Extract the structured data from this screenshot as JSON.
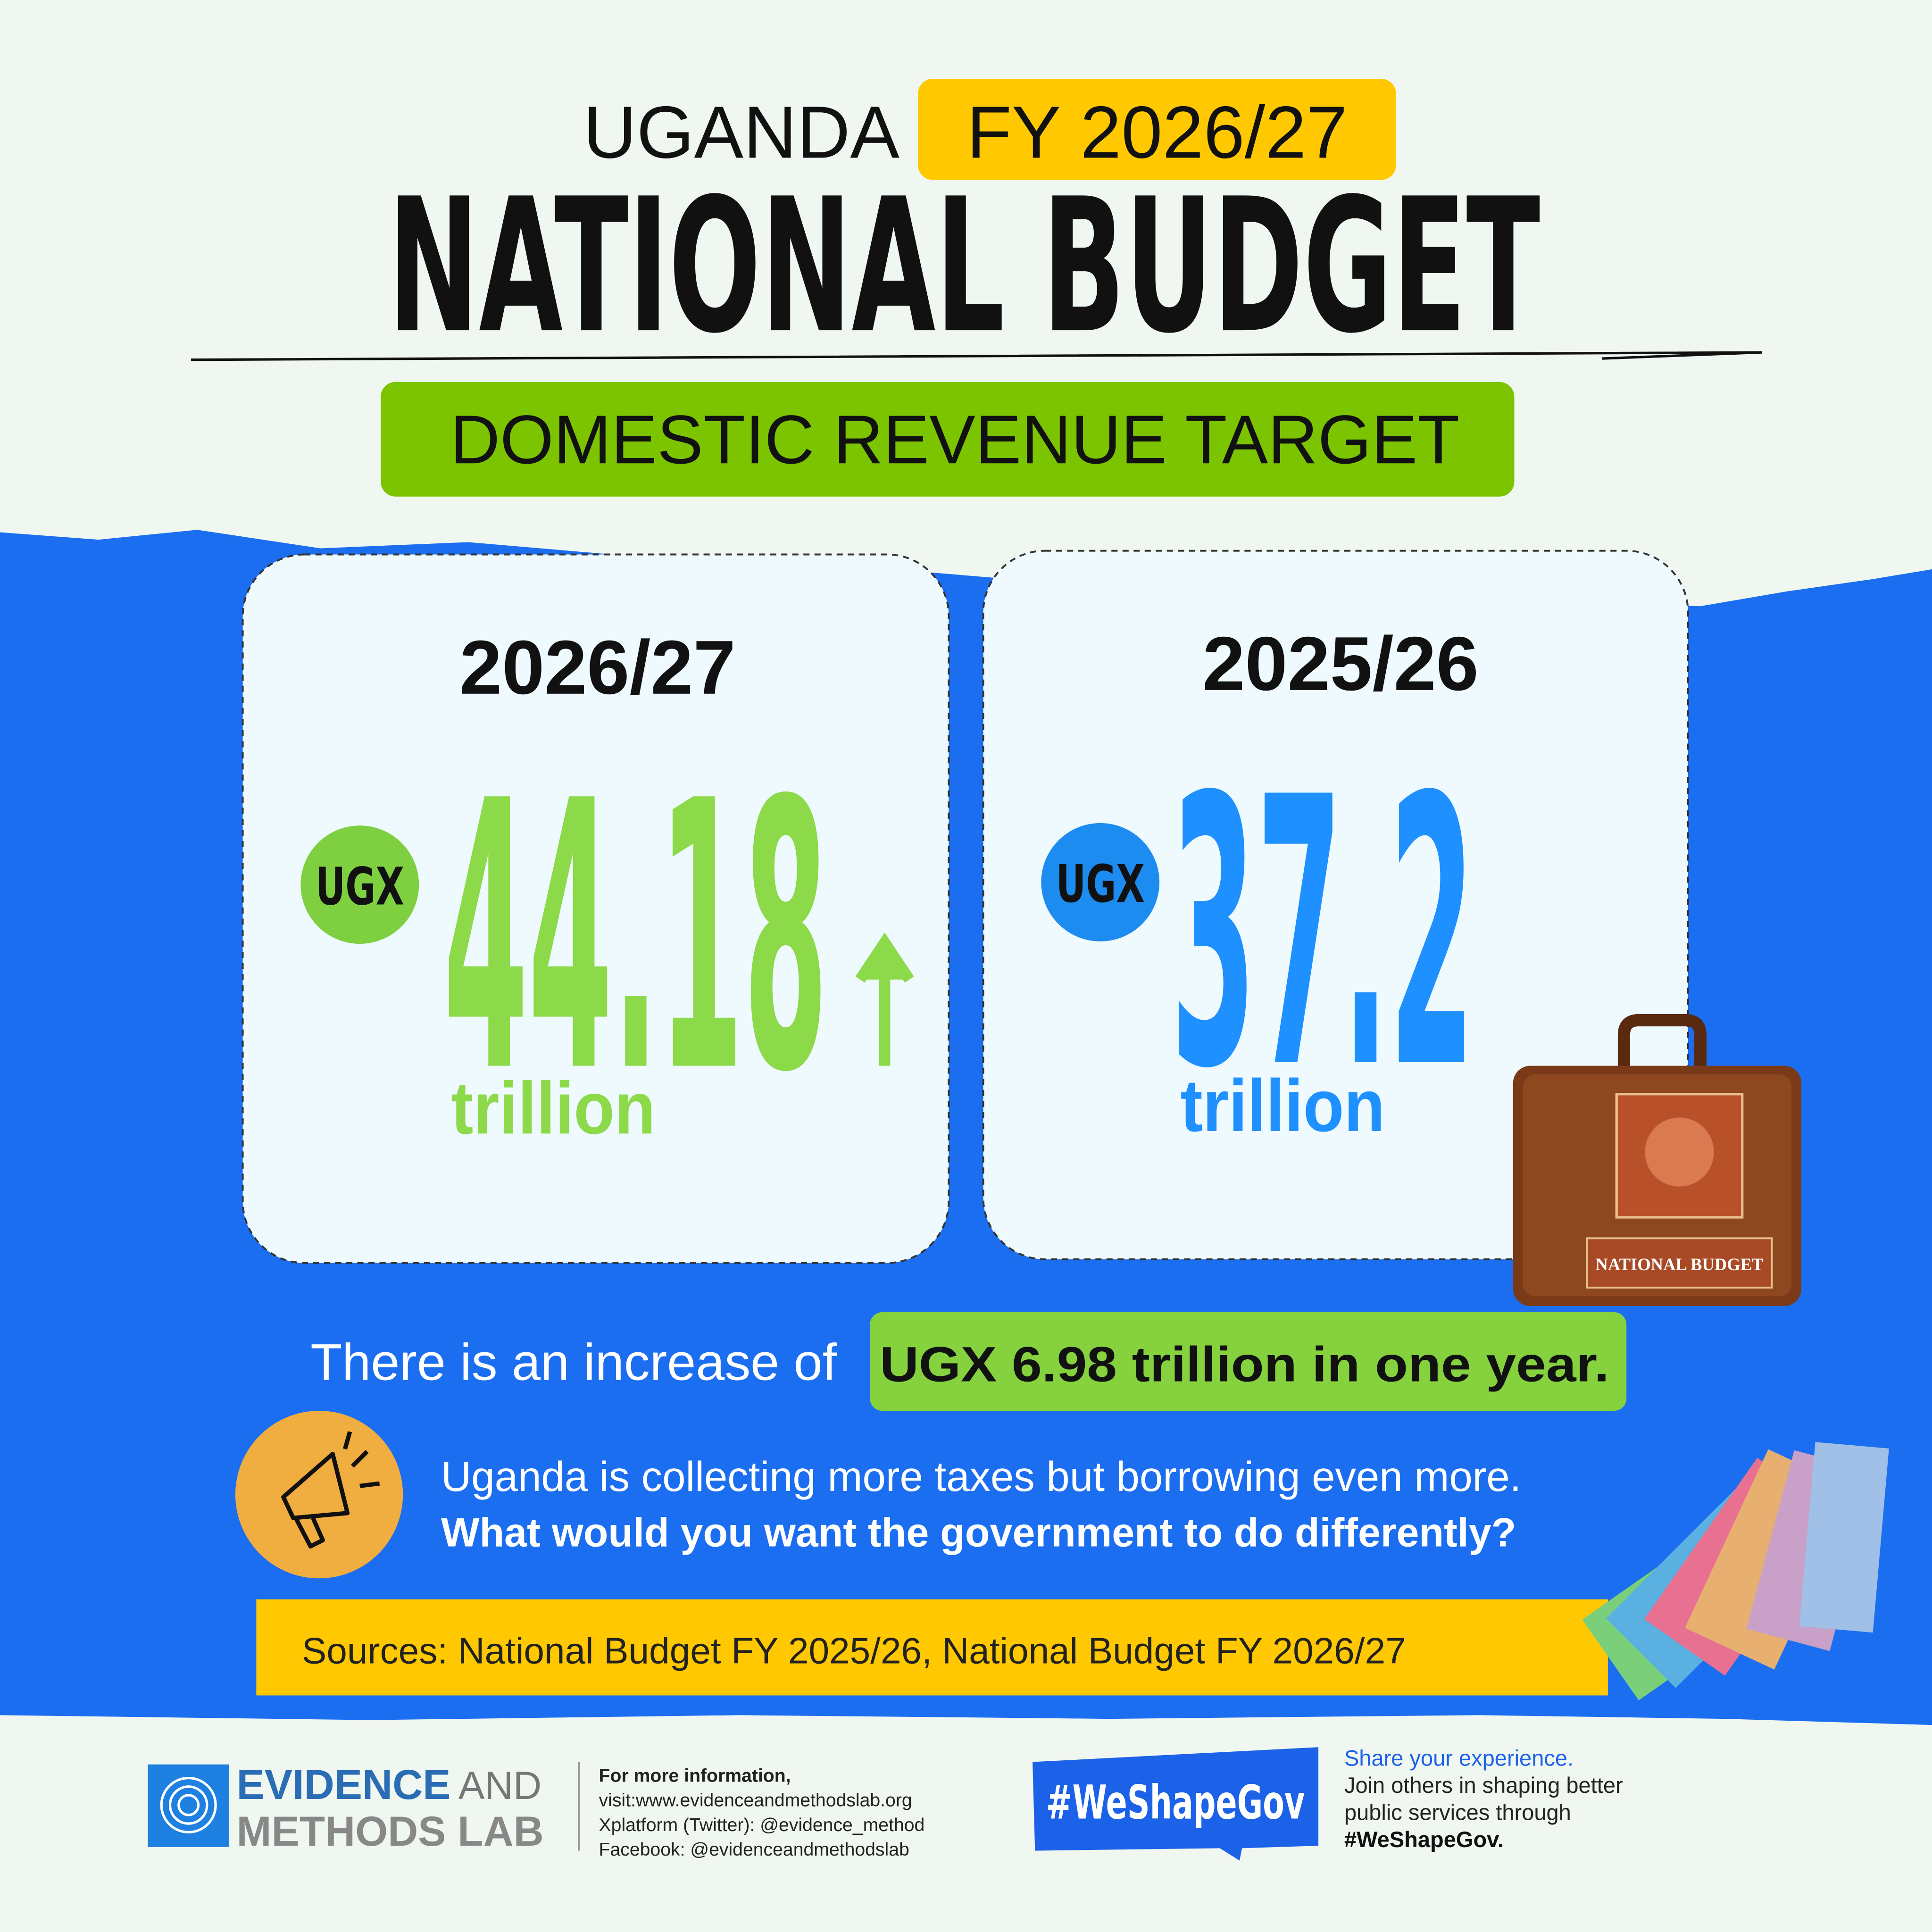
{
  "header": {
    "title_prefix": "UGANDA",
    "title_highlight": "FY 2026/27",
    "title": "NATIONAL BUDGET",
    "subtitle": "DOMESTIC REVENUE TARGET"
  },
  "cards": [
    {
      "year": "2026/27",
      "currency": "UGX",
      "amount": 44.18,
      "unit": "trillion"
    },
    {
      "year": "2025/26",
      "currency": "UGX",
      "amount": 37.2,
      "unit": "trillion"
    }
  ],
  "briefcase_label": "NATIONAL BUDGET",
  "increase": {
    "text": "There is an increase of",
    "highlight": "UGX 6.98 trillion in one year."
  },
  "callout": {
    "text": "Uganda is collecting more taxes but borrowing even more.",
    "question": "What would you want the government to do differently?"
  },
  "sources": "Sources: National Budget FY 2025/26, National Budget FY 2026/27",
  "footer": {
    "org_line1": "EVIDENCE",
    "org_and": "AND",
    "org_line2": "METHODS LAB",
    "info": [
      "For more information,",
      "visit:www.evidenceandmethodslab.org",
      "Xplatform (Twitter): @evidence_method",
      "Facebook: @evidenceandmethodslab"
    ],
    "hashtag": "#WeShapeGov",
    "share_title": "Share your experience.",
    "share_text": [
      "Join others in shaping better",
      "public services through"
    ],
    "share_tag": "#WeShapeGov."
  }
}
